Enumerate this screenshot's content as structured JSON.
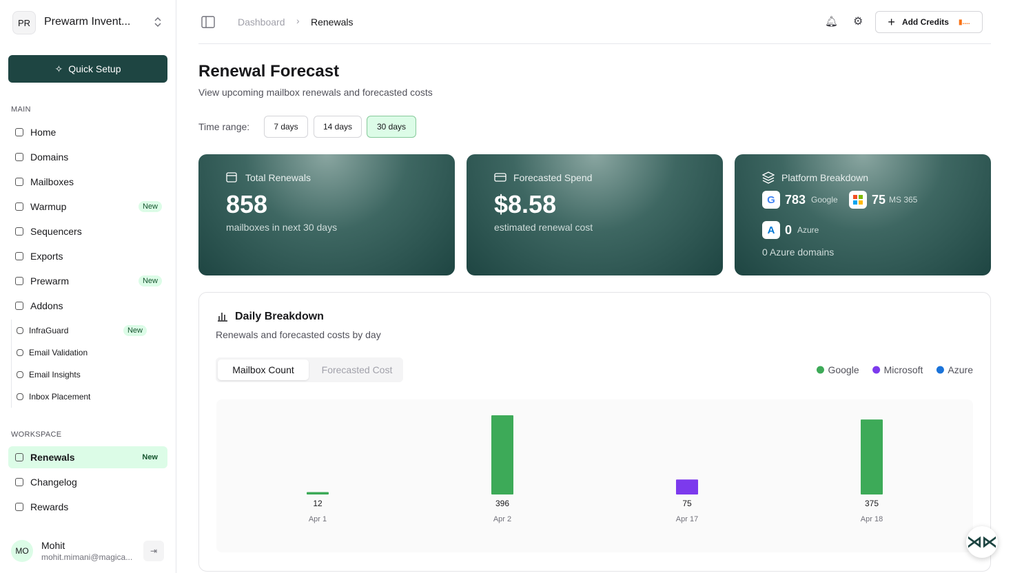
{
  "sidebar": {
    "workspace_badge": "PR",
    "workspace_name": "Prewarm Invent...",
    "quick_setup": "Quick Setup",
    "main_label": "MAIN",
    "main_items": [
      {
        "label": "Home"
      },
      {
        "label": "Domains"
      },
      {
        "label": "Mailboxes"
      },
      {
        "label": "Warmup",
        "badge": "New"
      },
      {
        "label": "Sequencers"
      },
      {
        "label": "Exports"
      },
      {
        "label": "Prewarm",
        "badge": "New"
      },
      {
        "label": "Addons"
      }
    ],
    "addon_items": [
      {
        "label": "InfraGuard",
        "badge": "New"
      },
      {
        "label": "Email Validation"
      },
      {
        "label": "Email Insights"
      },
      {
        "label": "Inbox Placement"
      }
    ],
    "workspace_label": "WORKSPACE",
    "workspace_items": [
      {
        "label": "Renewals",
        "badge": "New"
      },
      {
        "label": "Changelog"
      },
      {
        "label": "Rewards"
      }
    ],
    "user": {
      "initials": "MO",
      "name": "Mohit",
      "email": "mohit.mimani@magica..."
    }
  },
  "header": {
    "breadcrumb": [
      "Dashboard",
      "Renewals"
    ],
    "add_credits": "Add Credits"
  },
  "page": {
    "title": "Renewal Forecast",
    "subtitle": "View upcoming mailbox renewals and forecasted costs",
    "time_range_label": "Time range:",
    "time_ranges": [
      "7 days",
      "14 days",
      "30 days"
    ]
  },
  "cards": {
    "total": {
      "title": "Total Renewals",
      "value": "858",
      "caption": "mailboxes in next 30 days"
    },
    "spend": {
      "title": "Forecasted Spend",
      "value": "$8.58",
      "caption": "estimated renewal cost"
    },
    "platform": {
      "title": "Platform Breakdown",
      "google_value": "783",
      "google_label": "Google",
      "ms_value": "75",
      "ms_label": "MS 365",
      "azure_value": "0",
      "azure_label": "Azure",
      "caption": "0 Azure domains"
    }
  },
  "breakdown": {
    "title": "Daily Breakdown",
    "subtitle": "Renewals and forecasted costs by day",
    "tabs": [
      "Mailbox Count",
      "Forecasted Cost"
    ]
  },
  "chart_data": {
    "type": "bar",
    "categories": [
      "Apr 1",
      "Apr 2",
      "Apr 17",
      "Apr 18"
    ],
    "series": [
      {
        "name": "Google",
        "color": "#3daa58",
        "values": [
          12,
          396,
          null,
          375
        ]
      },
      {
        "name": "Microsoft",
        "color": "#7c3aed",
        "values": [
          null,
          null,
          75,
          null
        ]
      },
      {
        "name": "Azure",
        "color": "#1a73d9",
        "values": [
          null,
          null,
          null,
          null
        ]
      }
    ]
  }
}
